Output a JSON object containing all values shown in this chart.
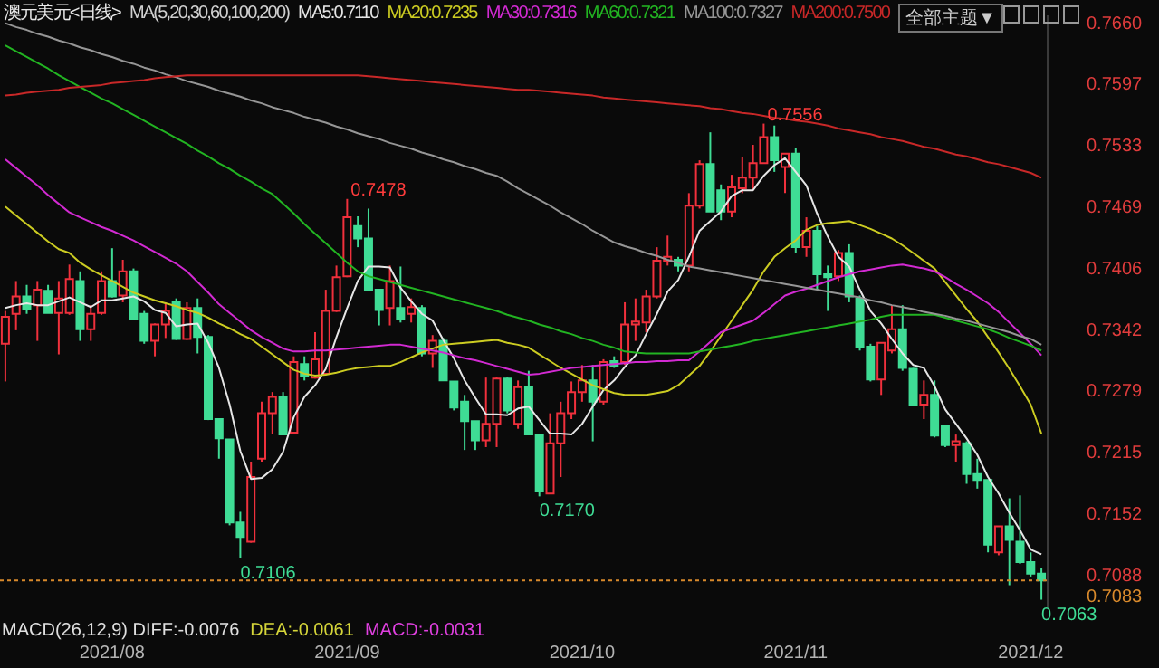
{
  "chart_data": {
    "type": "candlestick",
    "title": "澳元美元<日线>",
    "legend_title": "MA(5,20,30,60,100,200)",
    "legend": "top",
    "categories": [
      null,
      null,
      null,
      null,
      null,
      null,
      null,
      null,
      null,
      null,
      "2021/08",
      null,
      null,
      null,
      null,
      null,
      null,
      null,
      null,
      null,
      null,
      null,
      null,
      null,
      null,
      null,
      null,
      null,
      null,
      null,
      null,
      null,
      "2021/09",
      null,
      null,
      null,
      null,
      null,
      null,
      null,
      null,
      null,
      null,
      null,
      null,
      null,
      null,
      null,
      null,
      null,
      null,
      null,
      null,
      null,
      "2021/10",
      null,
      null,
      null,
      null,
      null,
      null,
      null,
      null,
      null,
      null,
      null,
      null,
      null,
      null,
      null,
      null,
      null,
      null,
      null,
      "2021/11",
      null,
      null,
      null,
      null,
      null,
      null,
      null,
      null,
      null,
      null,
      null,
      null,
      null,
      null,
      null,
      null,
      null,
      null,
      null,
      null,
      null,
      "2021/12",
      null
    ],
    "ohlc": [
      [
        0.7328,
        0.7362,
        0.7289,
        0.7356
      ],
      [
        0.7359,
        0.7393,
        0.7342,
        0.7377
      ],
      [
        0.7377,
        0.7389,
        0.7359,
        0.7364
      ],
      [
        0.7368,
        0.7393,
        0.7331,
        0.7384
      ],
      [
        0.7383,
        0.7389,
        0.736,
        0.736
      ],
      [
        0.736,
        0.7393,
        0.7317,
        0.7375
      ],
      [
        0.736,
        0.741,
        0.7358,
        0.7395
      ],
      [
        0.7393,
        0.7403,
        0.7331,
        0.7343
      ],
      [
        0.7343,
        0.7368,
        0.7331,
        0.7359
      ],
      [
        0.736,
        0.7403,
        0.7358,
        0.7393
      ],
      [
        0.7393,
        0.7427,
        0.7376,
        0.7377
      ],
      [
        0.7378,
        0.7415,
        0.7371,
        0.7403
      ],
      [
        0.7403,
        0.7406,
        0.7353,
        0.7354
      ],
      [
        0.7359,
        0.7362,
        0.7328,
        0.7331
      ],
      [
        0.7331,
        0.7349,
        0.7315,
        0.7348
      ],
      [
        0.7348,
        0.7371,
        0.7334,
        0.7362
      ],
      [
        0.7371,
        0.7375,
        0.7332,
        0.7333
      ],
      [
        0.7333,
        0.7371,
        0.7332,
        0.7365
      ],
      [
        0.7365,
        0.7375,
        0.7318,
        0.7335
      ],
      [
        0.7335,
        0.7337,
        0.7249,
        0.725
      ],
      [
        0.725,
        0.725,
        0.7209,
        0.723
      ],
      [
        0.7229,
        0.7229,
        0.714,
        0.7143
      ],
      [
        0.7143,
        0.7154,
        0.7106,
        0.7128
      ],
      [
        0.7123,
        0.7206,
        0.7122,
        0.719
      ],
      [
        0.7209,
        0.7268,
        0.7206,
        0.7256
      ],
      [
        0.7256,
        0.7278,
        0.7235,
        0.7273
      ],
      [
        0.7273,
        0.7278,
        0.7234,
        0.7234
      ],
      [
        0.7236,
        0.7315,
        0.7235,
        0.7309
      ],
      [
        0.7307,
        0.7315,
        0.729,
        0.7295
      ],
      [
        0.7293,
        0.734,
        0.7292,
        0.7312
      ],
      [
        0.7297,
        0.7384,
        0.7296,
        0.7362
      ],
      [
        0.7362,
        0.7409,
        0.7361,
        0.7397
      ],
      [
        0.7398,
        0.7478,
        0.7397,
        0.7459
      ],
      [
        0.745,
        0.746,
        0.7428,
        0.7437
      ],
      [
        0.7437,
        0.7468,
        0.7384,
        0.7384
      ],
      [
        0.7384,
        0.7384,
        0.7347,
        0.7363
      ],
      [
        0.7365,
        0.7409,
        0.7347,
        0.7393
      ],
      [
        0.7365,
        0.7408,
        0.735,
        0.7354
      ],
      [
        0.7359,
        0.7375,
        0.735,
        0.7366
      ],
      [
        0.7365,
        0.7368,
        0.7315,
        0.7318
      ],
      [
        0.7318,
        0.7337,
        0.7303,
        0.7331
      ],
      [
        0.7331,
        0.7334,
        0.729,
        0.729
      ],
      [
        0.7289,
        0.7289,
        0.7259,
        0.7262
      ],
      [
        0.7268,
        0.7275,
        0.7218,
        0.7248
      ],
      [
        0.7248,
        0.7248,
        0.7218,
        0.7228
      ],
      [
        0.7228,
        0.7293,
        0.7221,
        0.7245
      ],
      [
        0.7245,
        0.7293,
        0.7221,
        0.7292
      ],
      [
        0.7292,
        0.7293,
        0.7256,
        0.7259
      ],
      [
        0.7245,
        0.729,
        0.724,
        0.7283
      ],
      [
        0.7283,
        0.73,
        0.7234,
        0.7234
      ],
      [
        0.7234,
        0.7234,
        0.717,
        0.7175
      ],
      [
        0.7173,
        0.7256,
        0.7173,
        0.7225
      ],
      [
        0.7225,
        0.7268,
        0.719,
        0.7256
      ],
      [
        0.7256,
        0.7289,
        0.725,
        0.7278
      ],
      [
        0.7278,
        0.7306,
        0.7268,
        0.729
      ],
      [
        0.729,
        0.7306,
        0.7227,
        0.7268
      ],
      [
        0.7268,
        0.7312,
        0.7265,
        0.7309
      ],
      [
        0.731,
        0.7315,
        0.7303,
        0.7305
      ],
      [
        0.7309,
        0.7371,
        0.7306,
        0.7348
      ],
      [
        0.7348,
        0.7375,
        0.7331,
        0.7351
      ],
      [
        0.735,
        0.7384,
        0.734,
        0.7377
      ],
      [
        0.7377,
        0.7428,
        0.7375,
        0.7414
      ],
      [
        0.7414,
        0.744,
        0.7409,
        0.7418
      ],
      [
        0.7415,
        0.7418,
        0.7403,
        0.7409
      ],
      [
        0.7409,
        0.7484,
        0.7403,
        0.7471
      ],
      [
        0.7471,
        0.7518,
        0.7468,
        0.7514
      ],
      [
        0.7514,
        0.7547,
        0.7465,
        0.7465
      ],
      [
        0.7487,
        0.7493,
        0.7456,
        0.7465
      ],
      [
        0.7465,
        0.7503,
        0.7459,
        0.749
      ],
      [
        0.7489,
        0.7521,
        0.7484,
        0.75
      ],
      [
        0.75,
        0.7534,
        0.7487,
        0.7515
      ],
      [
        0.7515,
        0.7556,
        0.7515,
        0.7542
      ],
      [
        0.7542,
        0.7554,
        0.7506,
        0.7518
      ],
      [
        0.7511,
        0.7525,
        0.7484,
        0.7525
      ],
      [
        0.7525,
        0.7531,
        0.7422,
        0.7428
      ],
      [
        0.7428,
        0.7459,
        0.7418,
        0.7445
      ],
      [
        0.7445,
        0.745,
        0.7384,
        0.74
      ],
      [
        0.74,
        0.7409,
        0.7362,
        0.7397
      ],
      [
        0.7398,
        0.7425,
        0.7393,
        0.7422
      ],
      [
        0.7422,
        0.7431,
        0.7371,
        0.7377
      ],
      [
        0.7375,
        0.7378,
        0.7321,
        0.7325
      ],
      [
        0.7325,
        0.7328,
        0.7289,
        0.7291
      ],
      [
        0.7291,
        0.7329,
        0.7275,
        0.7329
      ],
      [
        0.7321,
        0.7368,
        0.7318,
        0.7343
      ],
      [
        0.7343,
        0.7368,
        0.73,
        0.7303
      ],
      [
        0.7302,
        0.7303,
        0.7264,
        0.7265
      ],
      [
        0.7265,
        0.729,
        0.725,
        0.7275
      ],
      [
        0.7275,
        0.729,
        0.7231,
        0.7233
      ],
      [
        0.7243,
        0.7243,
        0.7221,
        0.7223
      ],
      [
        0.7223,
        0.7234,
        0.7206,
        0.7227
      ],
      [
        0.7225,
        0.7227,
        0.7183,
        0.7193
      ],
      [
        0.7193,
        0.7209,
        0.7178,
        0.7187
      ],
      [
        0.7187,
        0.7187,
        0.7112,
        0.712
      ],
      [
        0.7112,
        0.7139,
        0.7109,
        0.7139
      ],
      [
        0.7139,
        0.7168,
        0.7078,
        0.7125
      ],
      [
        0.7123,
        0.7171,
        0.71,
        0.7102
      ],
      [
        0.7102,
        0.7112,
        0.7087,
        0.709
      ],
      [
        0.709,
        0.7096,
        0.7063,
        0.7083
      ]
    ],
    "colors": [
      "#f0303c",
      "#f0303c",
      "#3fdc95",
      "#f0303c",
      "#3fdc95",
      "#f0303c",
      "#f0303c",
      "#3fdc95",
      "#f0303c",
      "#f0303c",
      "#3fdc95",
      "#f0303c",
      "#3fdc95",
      "#3fdc95",
      "#f0303c",
      "#f0303c",
      "#3fdc95",
      "#f0303c",
      "#3fdc95",
      "#3fdc95",
      "#3fdc95",
      "#3fdc95",
      "#3fdc95",
      "#f0303c",
      "#f0303c",
      "#f0303c",
      "#3fdc95",
      "#f0303c",
      "#3fdc95",
      "#f0303c",
      "#f0303c",
      "#f0303c",
      "#f0303c",
      "#3fdc95",
      "#3fdc95",
      "#3fdc95",
      "#f0303c",
      "#3fdc95",
      "#f0303c",
      "#3fdc95",
      "#f0303c",
      "#3fdc95",
      "#3fdc95",
      "#3fdc95",
      "#3fdc95",
      "#f0303c",
      "#f0303c",
      "#3fdc95",
      "#f0303c",
      "#3fdc95",
      "#3fdc95",
      "#f0303c",
      "#f0303c",
      "#f0303c",
      "#f0303c",
      "#3fdc95",
      "#f0303c",
      "#3fdc95",
      "#f0303c",
      "#f0303c",
      "#f0303c",
      "#f0303c",
      "#f0303c",
      "#3fdc95",
      "#f0303c",
      "#f0303c",
      "#3fdc95",
      "#3fdc95",
      "#f0303c",
      "#f0303c",
      "#f0303c",
      "#f0303c",
      "#3fdc95",
      "#f0303c",
      "#3fdc95",
      "#f0303c",
      "#3fdc95",
      "#3fdc95",
      "#f0303c",
      "#3fdc95",
      "#3fdc95",
      "#3fdc95",
      "#f0303c",
      "#f0303c",
      "#3fdc95",
      "#3fdc95",
      "#f0303c",
      "#3fdc95",
      "#3fdc95",
      "#f0303c",
      "#3fdc95",
      "#3fdc95",
      "#3fdc95",
      "#f0303c",
      "#3fdc95",
      "#3fdc95",
      "#3fdc95",
      "#3fdc95"
    ],
    "series": [
      {
        "type": "line",
        "name": "MA5:0.7110",
        "color": "#e6e6e6",
        "values": [
          0.7365,
          0.7368,
          0.737,
          0.7368,
          0.7368,
          0.7372,
          0.7376,
          0.7371,
          0.7366,
          0.7373,
          0.7373,
          0.7375,
          0.7377,
          0.7372,
          0.7363,
          0.736,
          0.7346,
          0.7348,
          0.7349,
          0.7329,
          0.7303,
          0.7265,
          0.7217,
          0.7188,
          0.7189,
          0.7198,
          0.7216,
          0.7252,
          0.7273,
          0.7285,
          0.7302,
          0.7335,
          0.7365,
          0.7393,
          0.7408,
          0.7408,
          0.7407,
          0.7386,
          0.7372,
          0.7359,
          0.7352,
          0.7332,
          0.7313,
          0.729,
          0.7272,
          0.7255,
          0.7255,
          0.7254,
          0.7261,
          0.7263,
          0.7249,
          0.7235,
          0.7235,
          0.7234,
          0.7245,
          0.7263,
          0.728,
          0.729,
          0.7304,
          0.7316,
          0.7338,
          0.7359,
          0.7382,
          0.7394,
          0.7418,
          0.7445,
          0.7455,
          0.7465,
          0.7481,
          0.7487,
          0.7487,
          0.7502,
          0.7513,
          0.752,
          0.7506,
          0.7492,
          0.7463,
          0.7439,
          0.7418,
          0.7408,
          0.7384,
          0.7362,
          0.7349,
          0.7333,
          0.7318,
          0.7306,
          0.7303,
          0.7284,
          0.726,
          0.7245,
          0.723,
          0.7213,
          0.719,
          0.7173,
          0.7153,
          0.7135,
          0.7115,
          0.711
        ]
      },
      {
        "type": "line",
        "name": "MA20:0.7235",
        "color": "#cccc22",
        "values": [
          0.747,
          0.7461,
          0.7452,
          0.7443,
          0.7434,
          0.7426,
          0.7422,
          0.7412,
          0.7405,
          0.7399,
          0.7393,
          0.7387,
          0.7381,
          0.7377,
          0.7373,
          0.737,
          0.7367,
          0.7363,
          0.736,
          0.7355,
          0.7349,
          0.7344,
          0.7338,
          0.7333,
          0.7325,
          0.7317,
          0.7309,
          0.7301,
          0.7297,
          0.7295,
          0.7296,
          0.7298,
          0.7301,
          0.7303,
          0.7304,
          0.7305,
          0.7305,
          0.7309,
          0.7314,
          0.7319,
          0.7323,
          0.7327,
          0.7328,
          0.7329,
          0.733,
          0.7331,
          0.7332,
          0.7329,
          0.7327,
          0.7324,
          0.7317,
          0.731,
          0.7303,
          0.7297,
          0.7291,
          0.7285,
          0.7281,
          0.7277,
          0.7275,
          0.7275,
          0.7275,
          0.7277,
          0.7279,
          0.7285,
          0.7295,
          0.7305,
          0.732,
          0.7336,
          0.7352,
          0.7368,
          0.7384,
          0.7403,
          0.7418,
          0.7427,
          0.7435,
          0.7446,
          0.7451,
          0.7453,
          0.7454,
          0.7455,
          0.7451,
          0.7447,
          0.7442,
          0.7437,
          0.743,
          0.7422,
          0.7414,
          0.7406,
          0.7392,
          0.7378,
          0.7364,
          0.7351,
          0.7335,
          0.7319,
          0.7302,
          0.7284,
          0.7265,
          0.7235
        ]
      },
      {
        "type": "line",
        "name": "MA30:0.7316",
        "color": "#d22ad2",
        "values": [
          0.7519,
          0.751,
          0.7501,
          0.7492,
          0.7482,
          0.7473,
          0.7464,
          0.7459,
          0.7454,
          0.7449,
          0.7445,
          0.744,
          0.7435,
          0.7429,
          0.7423,
          0.7417,
          0.7411,
          0.7403,
          0.7392,
          0.7381,
          0.7369,
          0.736,
          0.7351,
          0.7342,
          0.7335,
          0.7329,
          0.7323,
          0.732,
          0.732,
          0.7321,
          0.7321,
          0.7322,
          0.7323,
          0.7324,
          0.7325,
          0.7326,
          0.7327,
          0.7327,
          0.7325,
          0.7323,
          0.7321,
          0.7319,
          0.7316,
          0.7313,
          0.7311,
          0.7308,
          0.7305,
          0.7302,
          0.7299,
          0.7296,
          0.7297,
          0.7299,
          0.7301,
          0.7303,
          0.7304,
          0.7305,
          0.7306,
          0.7307,
          0.7308,
          0.7309,
          0.7309,
          0.731,
          0.731,
          0.7311,
          0.7311,
          0.732,
          0.733,
          0.734,
          0.7344,
          0.7348,
          0.7352,
          0.736,
          0.7369,
          0.7378,
          0.7382,
          0.7385,
          0.7389,
          0.7393,
          0.7397,
          0.74,
          0.7403,
          0.7405,
          0.7407,
          0.7409,
          0.741,
          0.7408,
          0.7406,
          0.7403,
          0.7397,
          0.739,
          0.7384,
          0.7377,
          0.737,
          0.7361,
          0.735,
          0.7339,
          0.7328,
          0.7316
        ]
      },
      {
        "type": "line",
        "name": "MA60:0.7321",
        "color": "#22b422",
        "values": [
          0.7637,
          0.7631,
          0.7625,
          0.7619,
          0.7613,
          0.7606,
          0.76,
          0.7594,
          0.7588,
          0.7582,
          0.7577,
          0.7571,
          0.7565,
          0.7559,
          0.7553,
          0.7547,
          0.7541,
          0.7535,
          0.7528,
          0.7522,
          0.7515,
          0.7509,
          0.7502,
          0.7496,
          0.7489,
          0.7483,
          0.7473,
          0.7463,
          0.7452,
          0.7442,
          0.7432,
          0.7422,
          0.7412,
          0.7403,
          0.7398,
          0.7395,
          0.7392,
          0.7389,
          0.7386,
          0.7383,
          0.738,
          0.7377,
          0.7374,
          0.7371,
          0.7368,
          0.7365,
          0.7362,
          0.7358,
          0.7355,
          0.7352,
          0.7348,
          0.7345,
          0.7341,
          0.7338,
          0.7334,
          0.7331,
          0.7327,
          0.7324,
          0.732,
          0.7319,
          0.7318,
          0.7318,
          0.7318,
          0.7318,
          0.7318,
          0.732,
          0.7322,
          0.7324,
          0.7326,
          0.7328,
          0.7331,
          0.7333,
          0.7335,
          0.7337,
          0.7339,
          0.7341,
          0.7343,
          0.7345,
          0.7347,
          0.7349,
          0.7351,
          0.7353,
          0.7356,
          0.7358,
          0.7358,
          0.7358,
          0.7358,
          0.7358,
          0.7355,
          0.7352,
          0.7349,
          0.7346,
          0.7343,
          0.7339,
          0.7334,
          0.733,
          0.7326,
          0.7321
        ]
      },
      {
        "type": "line",
        "name": "MA100:0.7327",
        "color": "#969696",
        "values": [
          0.766,
          0.7656,
          0.7653,
          0.7649,
          0.7646,
          0.7642,
          0.7639,
          0.7635,
          0.7632,
          0.7628,
          0.7625,
          0.7621,
          0.7618,
          0.7614,
          0.7611,
          0.7607,
          0.7604,
          0.76,
          0.7597,
          0.7594,
          0.759,
          0.7587,
          0.7584,
          0.758,
          0.7577,
          0.7573,
          0.757,
          0.7567,
          0.7563,
          0.756,
          0.7557,
          0.7553,
          0.755,
          0.7546,
          0.7543,
          0.754,
          0.7536,
          0.7533,
          0.753,
          0.7526,
          0.7523,
          0.7519,
          0.7516,
          0.7512,
          0.7509,
          0.7505,
          0.7502,
          0.7496,
          0.7489,
          0.7483,
          0.7477,
          0.7471,
          0.7464,
          0.7458,
          0.7452,
          0.7445,
          0.7439,
          0.7433,
          0.7429,
          0.7426,
          0.7422,
          0.7419,
          0.7415,
          0.7412,
          0.7408,
          0.7406,
          0.7404,
          0.7402,
          0.74,
          0.7398,
          0.7396,
          0.7394,
          0.7392,
          0.739,
          0.7388,
          0.7386,
          0.7384,
          0.7382,
          0.738,
          0.7378,
          0.7376,
          0.7373,
          0.7371,
          0.7368,
          0.7366,
          0.7364,
          0.7361,
          0.7359,
          0.7357,
          0.7354,
          0.7352,
          0.7349,
          0.7346,
          0.7343,
          0.734,
          0.7336,
          0.7333,
          0.7327
        ]
      },
      {
        "type": "line",
        "name": "MA200:0.7500",
        "color": "#c82828",
        "values": [
          0.7585,
          0.7586,
          0.7588,
          0.7589,
          0.759,
          0.7591,
          0.7593,
          0.7594,
          0.7595,
          0.7596,
          0.7598,
          0.7599,
          0.76,
          0.7601,
          0.7603,
          0.7604,
          0.7605,
          0.7606,
          0.7606,
          0.7606,
          0.7606,
          0.7606,
          0.7606,
          0.7606,
          0.7606,
          0.7606,
          0.7606,
          0.7606,
          0.7606,
          0.7606,
          0.7606,
          0.7606,
          0.7606,
          0.7606,
          0.7605,
          0.7604,
          0.7603,
          0.7602,
          0.7601,
          0.76,
          0.7599,
          0.7598,
          0.7597,
          0.7596,
          0.7595,
          0.7594,
          0.7593,
          0.7592,
          0.7591,
          0.7591,
          0.759,
          0.7589,
          0.7588,
          0.7587,
          0.7586,
          0.7585,
          0.7583,
          0.7582,
          0.7581,
          0.758,
          0.7579,
          0.7578,
          0.7577,
          0.7576,
          0.7575,
          0.7574,
          0.7572,
          0.7571,
          0.7569,
          0.7567,
          0.7566,
          0.7564,
          0.7562,
          0.7561,
          0.7559,
          0.7558,
          0.7556,
          0.7554,
          0.7551,
          0.7549,
          0.7547,
          0.7545,
          0.7542,
          0.754,
          0.7538,
          0.7535,
          0.7532,
          0.753,
          0.7527,
          0.7524,
          0.7522,
          0.7519,
          0.7516,
          0.7514,
          0.7511,
          0.7508,
          0.7505,
          0.75
        ]
      }
    ],
    "ylim": [
      0.7056,
      0.7669
    ],
    "yticks": [
      {
        "value": 0.766,
        "label": "0.7660"
      },
      0.7597,
      0.7533,
      0.7469,
      0.7406,
      0.7342,
      0.7279,
      0.7215,
      0.7152,
      0.7088
    ],
    "ref_lines": [
      {
        "axis": "y",
        "value": 0.7083,
        "label": "0.7083",
        "color": "#d98a2c",
        "line_style": "dotted"
      }
    ],
    "annotations": [
      "0.7478",
      "0.7106",
      "0.7170",
      "0.7556",
      "0.7063",
      "MACD(26,12,9) DIFF:-0.0076",
      "DEA:-0.0061",
      "MACD:-0.0031",
      "全部主题▼"
    ]
  }
}
